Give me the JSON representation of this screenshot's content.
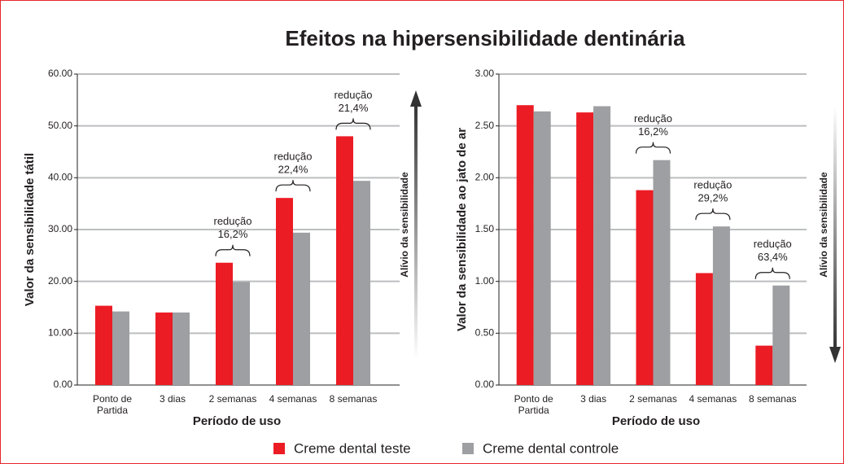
{
  "title": "Efeitos na hipersensibilidade dentinária",
  "chart_data": [
    {
      "type": "bar",
      "ylabel": "Valor da sensibilidade tátil",
      "xlabel": "Período de uso",
      "side_label": "Alívio da sensibilidade",
      "categories": [
        "Ponto de Partida",
        "3 dias",
        "2 semanas",
        "4 semanas",
        "8 semanas"
      ],
      "series": [
        {
          "name": "Creme dental teste",
          "color": "#ec1c24",
          "values": [
            15.3,
            14.0,
            23.6,
            36.1,
            48.0
          ]
        },
        {
          "name": "Creme dental controle",
          "color": "#9d9fa2",
          "values": [
            14.2,
            14.0,
            19.9,
            29.4,
            39.4
          ]
        }
      ],
      "annotations": [
        {
          "label": "redução",
          "text": "16,2%"
        },
        {
          "label": "redução",
          "text": "22,4%"
        },
        {
          "label": "redução",
          "text": "21,4%"
        }
      ],
      "ylim": [
        0,
        60
      ],
      "yticks": [
        {
          "value": 0,
          "label": "0.00"
        },
        {
          "value": 10,
          "label": "10.00"
        },
        {
          "value": 20,
          "label": "20.00"
        },
        {
          "value": 30,
          "label": "30.00"
        },
        {
          "value": 40,
          "label": "40.00"
        },
        {
          "value": 50,
          "label": "50.00"
        },
        {
          "value": 60,
          "label": "60.00"
        }
      ],
      "grid": true
    },
    {
      "type": "bar",
      "ylabel": "Valor da sensibilidade ao jato de ar",
      "xlabel": "Período de uso",
      "side_label": "Alívio da sensibilidade",
      "categories": [
        "Ponto de Partida",
        "3 dias",
        "2 semanas",
        "4 semanas",
        "8 semanas"
      ],
      "series": [
        {
          "color": "#ec1c24",
          "values": [
            2.7,
            2.63,
            1.88,
            1.08,
            0.38
          ]
        },
        {
          "color": "#9d9fa2",
          "values": [
            2.64,
            2.69,
            2.17,
            1.53,
            0.96
          ]
        }
      ],
      "annotations": [
        {
          "label": "redução",
          "text": "16,2%"
        },
        {
          "label": "redução",
          "text": "29,2%"
        },
        {
          "label": "redução",
          "text": "63,4%"
        }
      ],
      "ylim": [
        0,
        3
      ],
      "yticks": [
        {
          "value": 0,
          "label": "0.00"
        },
        {
          "value": 0.5,
          "label": "0.50"
        },
        {
          "value": 1,
          "label": "1.00"
        },
        {
          "value": 1.5,
          "label": "1.50"
        },
        {
          "value": 2,
          "label": "2.00"
        },
        {
          "value": 2.5,
          "label": "2.50"
        },
        {
          "value": 3,
          "label": "3.00"
        }
      ],
      "grid": true
    }
  ]
}
